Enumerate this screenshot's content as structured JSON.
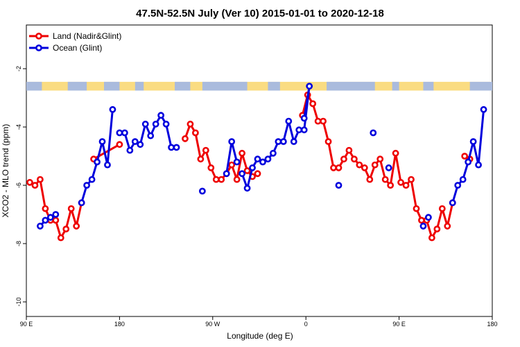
{
  "chart_data": {
    "type": "line",
    "title": "47.5N-52.5N July (Ver 10)   2015-01-01 to 2020-12-18",
    "xlabel": "Longitude (deg E)",
    "ylabel": "XCO2 - MLO trend (ppm)",
    "xlim": [
      -90,
      180
    ],
    "ylim": [
      -10.5,
      -0.5
    ],
    "x_ticks": [
      {
        "value": -90,
        "label": "90 E"
      },
      {
        "value": -36,
        "label": "180"
      },
      {
        "value": 18,
        "label": "90 W"
      },
      {
        "value": 72,
        "label": "0"
      },
      {
        "value": 126,
        "label": "90 E"
      },
      {
        "value": 180,
        "label": "180"
      }
    ],
    "y_ticks": [
      {
        "value": -2,
        "label": "-2"
      },
      {
        "value": -4,
        "label": "-4"
      },
      {
        "value": -6,
        "label": "-6"
      },
      {
        "value": -8,
        "label": "-8"
      },
      {
        "value": -10,
        "label": "-10"
      }
    ],
    "legend_position": "top-left",
    "land_ocean_strip": {
      "y_top": -2.45,
      "y_bottom": -2.75,
      "land_color": "#FADC82",
      "ocean_color": "#AABBDD"
    },
    "series": [
      {
        "name": "Land (Nadir&Glint)",
        "color": "#EE0000",
        "segments": [
          [
            [
              -88,
              -5.9
            ],
            [
              -85,
              -6.0
            ],
            [
              -82,
              -5.8
            ],
            [
              -79,
              -6.8
            ],
            [
              -76,
              -7.2
            ],
            [
              -73,
              -7.2
            ],
            [
              -70,
              -7.8
            ],
            [
              -67,
              -7.5
            ],
            [
              -64,
              -6.8
            ],
            [
              -61,
              -7.4
            ],
            [
              -58,
              -6.6
            ]
          ],
          [
            [
              -51,
              -5.1
            ],
            [
              -36,
              -4.6
            ]
          ],
          [
            [
              2,
              -4.4
            ],
            [
              5,
              -3.9
            ],
            [
              8,
              -4.2
            ],
            [
              11,
              -5.1
            ],
            [
              14,
              -4.8
            ],
            [
              17,
              -5.4
            ],
            [
              20,
              -5.8
            ],
            [
              23,
              -5.8
            ],
            [
              26,
              -5.6
            ],
            [
              29,
              -5.3
            ],
            [
              32,
              -5.8
            ],
            [
              35,
              -4.9
            ],
            [
              38,
              -5.5
            ],
            [
              41,
              -5.7
            ],
            [
              44,
              -5.6
            ]
          ],
          [
            [
              70,
              -3.6
            ],
            [
              73,
              -2.9
            ],
            [
              76,
              -3.2
            ],
            [
              79,
              -3.8
            ],
            [
              82,
              -3.8
            ],
            [
              85,
              -4.5
            ],
            [
              88,
              -5.4
            ],
            [
              91,
              -5.4
            ],
            [
              94,
              -5.1
            ],
            [
              97,
              -4.8
            ],
            [
              100,
              -5.1
            ],
            [
              103,
              -5.3
            ],
            [
              106,
              -5.4
            ],
            [
              109,
              -5.8
            ],
            [
              112,
              -5.3
            ],
            [
              115,
              -5.1
            ],
            [
              118,
              -5.8
            ],
            [
              121,
              -6.0
            ],
            [
              124,
              -4.9
            ],
            [
              127,
              -5.9
            ],
            [
              130,
              -6.0
            ],
            [
              133,
              -5.8
            ],
            [
              136,
              -6.8
            ],
            [
              139,
              -7.2
            ],
            [
              142,
              -7.2
            ],
            [
              145,
              -7.8
            ],
            [
              148,
              -7.5
            ],
            [
              151,
              -6.8
            ],
            [
              154,
              -7.4
            ],
            [
              157,
              -6.6
            ]
          ],
          [
            [
              164,
              -5.0
            ],
            [
              167,
              -5.1
            ]
          ]
        ]
      },
      {
        "name": "Ocean (Glint)",
        "color": "#0000DD",
        "segments": [
          [
            [
              -82,
              -7.4
            ],
            [
              -79,
              -7.2
            ],
            [
              -76,
              -7.1
            ],
            [
              -73,
              -7.0
            ]
          ],
          [
            [
              -58,
              -6.6
            ],
            [
              -55,
              -6.0
            ],
            [
              -52,
              -5.8
            ],
            [
              -49,
              -5.2
            ],
            [
              -46,
              -4.5
            ],
            [
              -43,
              -5.3
            ],
            [
              -40,
              -3.4
            ]
          ],
          [
            [
              -36,
              -4.2
            ],
            [
              -33,
              -4.2
            ],
            [
              -30,
              -4.8
            ],
            [
              -27,
              -4.5
            ],
            [
              -24,
              -4.6
            ],
            [
              -21,
              -3.9
            ],
            [
              -18,
              -4.3
            ],
            [
              -15,
              -3.9
            ],
            [
              -12,
              -3.6
            ],
            [
              -9,
              -3.9
            ],
            [
              -6,
              -4.7
            ],
            [
              -3,
              -4.7
            ]
          ],
          [
            [
              26,
              -5.6
            ],
            [
              29,
              -4.5
            ],
            [
              32,
              -5.2
            ]
          ],
          [
            [
              35,
              -5.6
            ],
            [
              38,
              -6.1
            ],
            [
              41,
              -5.4
            ],
            [
              44,
              -5.1
            ],
            [
              47,
              -5.2
            ],
            [
              50,
              -5.1
            ],
            [
              53,
              -4.9
            ],
            [
              56,
              -4.5
            ],
            [
              59,
              -4.5
            ],
            [
              62,
              -3.8
            ],
            [
              65,
              -4.5
            ],
            [
              68,
              -4.1
            ],
            [
              71,
              -4.1
            ],
            [
              74,
              -2.6
            ],
            [
              71,
              -3.7
            ]
          ],
          [
            [
              157,
              -6.6
            ],
            [
              160,
              -6.0
            ],
            [
              163,
              -5.8
            ],
            [
              166,
              -5.2
            ],
            [
              169,
              -4.5
            ],
            [
              172,
              -5.3
            ],
            [
              175,
              -3.4
            ]
          ]
        ],
        "isolated": [
          [
            12,
            -6.2
          ],
          [
            91,
            -6.0
          ],
          [
            111,
            -4.2
          ],
          [
            120,
            -5.4
          ],
          [
            140,
            -7.4
          ],
          [
            143,
            -7.1
          ]
        ]
      }
    ]
  }
}
